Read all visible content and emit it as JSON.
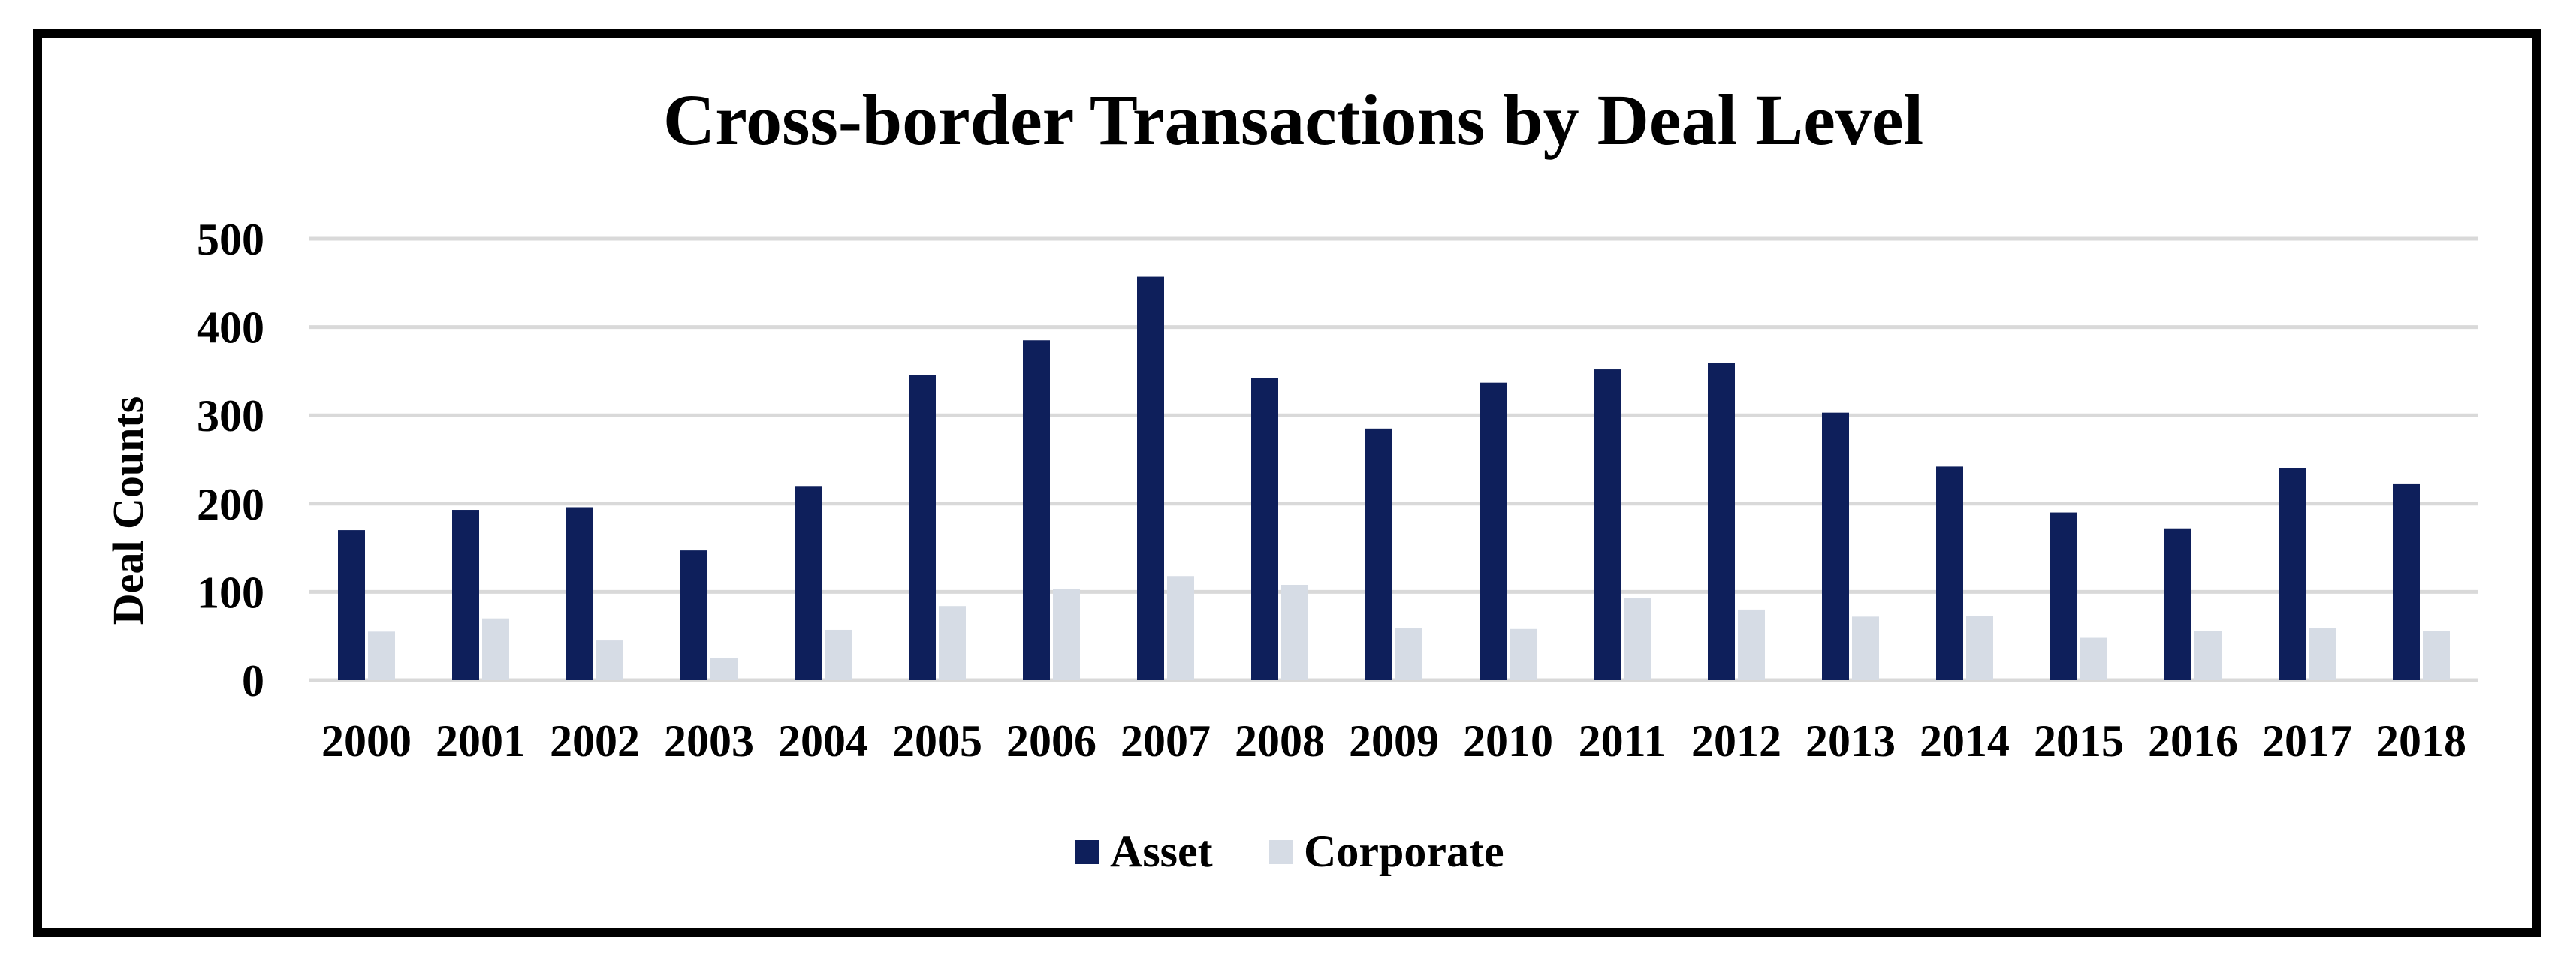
{
  "chart_data": {
    "type": "bar",
    "title": "Cross-border Transactions by Deal Level",
    "xlabel": "",
    "ylabel": "Deal Counts",
    "ylim": [
      0,
      500
    ],
    "yticks": [
      "0",
      "100",
      "200",
      "300",
      "400",
      "500"
    ],
    "grid": true,
    "legend_position": "bottom",
    "categories": [
      "2000",
      "2001",
      "2002",
      "2003",
      "2004",
      "2005",
      "2006",
      "2007",
      "2008",
      "2009",
      "2010",
      "2011",
      "2012",
      "2013",
      "2014",
      "2015",
      "2016",
      "2017",
      "2018"
    ],
    "series": [
      {
        "name": "Asset",
        "color": "#0e1f5b",
        "values": [
          170,
          193,
          196,
          147,
          220,
          346,
          385,
          457,
          342,
          285,
          337,
          352,
          359,
          303,
          242,
          190,
          172,
          240,
          222
        ]
      },
      {
        "name": "Corporate",
        "color": "#d6dce5",
        "values": [
          55,
          70,
          45,
          25,
          57,
          84,
          103,
          118,
          108,
          59,
          58,
          93,
          80,
          72,
          73,
          48,
          56,
          59,
          56
        ]
      }
    ]
  }
}
